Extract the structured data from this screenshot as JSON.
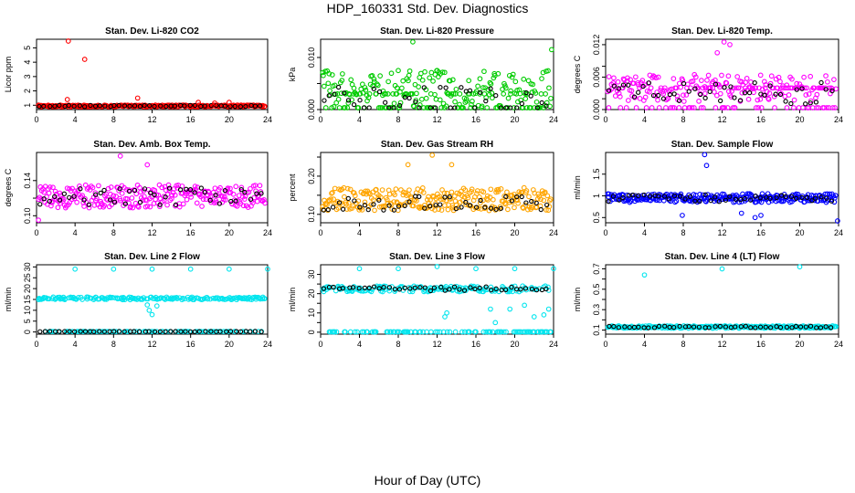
{
  "page": {
    "title": "HDP_160331  Std. Dev. Diagnostics",
    "xlabel": "Hour of Day (UTC)"
  },
  "chart_data": [
    {
      "type": "scatter",
      "title": "Stan. Dev. Li-820 CO2",
      "ylabel": "Licor ppm",
      "color": "#ff0000",
      "x_ticks": [
        0,
        4,
        8,
        12,
        16,
        20,
        24
      ],
      "xlim": [
        0,
        24
      ],
      "y_ticks": [
        1,
        2,
        3,
        4,
        5
      ],
      "ylim": [
        0.7,
        5.6
      ],
      "base": 0.95,
      "noise": 0.06,
      "black_base": 0.95,
      "black_noise": 0.05,
      "outliers": [
        [
          3.3,
          5.5
        ],
        [
          5.0,
          4.2
        ],
        [
          3.2,
          1.4
        ],
        [
          10.5,
          1.5
        ],
        [
          16.8,
          1.2
        ],
        [
          18.5,
          1.15
        ],
        [
          20.0,
          1.2
        ]
      ]
    },
    {
      "type": "scatter",
      "title": "Stan. Dev. Li-820 Pressure",
      "ylabel": "kPa",
      "color": "#00cc00",
      "x_ticks": [
        0,
        4,
        8,
        12,
        16,
        20,
        24
      ],
      "xlim": [
        0,
        24
      ],
      "y_ticks": [
        0.0,
        0.005,
        0.01
      ],
      "y_tick_labels": [
        "0.000",
        "",
        "0.010"
      ],
      "ylim": [
        0.0,
        0.0135
      ],
      "base": 0.004,
      "noise": 0.0035,
      "levels": [
        0.0,
        0.003
      ],
      "black_base": 0.002,
      "black_noise": 0.0025,
      "outliers": [
        [
          9.5,
          0.013
        ],
        [
          23.8,
          0.0115
        ],
        [
          8.0,
          0.0075
        ],
        [
          12.0,
          0.0075
        ]
      ]
    },
    {
      "type": "scatter",
      "title": "Stan. Dev. Li-820 Temp.",
      "ylabel": "degrees C",
      "color": "#ff00ff",
      "x_ticks": [
        0,
        4,
        8,
        12,
        16,
        20,
        24
      ],
      "xlim": [
        0,
        24
      ],
      "y_ticks": [
        0.0,
        0.002,
        0.006,
        0.008,
        0.012
      ],
      "y_tick_labels": [
        "0.000",
        "",
        "0.006",
        "",
        "0.012"
      ],
      "ylim": [
        0.0,
        0.013
      ],
      "base": 0.004,
      "noise": 0.0025,
      "levels": [
        0.0,
        0.004
      ],
      "black_base": 0.003,
      "black_noise": 0.002,
      "outliers": [
        [
          12.2,
          0.0125
        ],
        [
          12.8,
          0.012
        ],
        [
          11.5,
          0.0105
        ]
      ]
    },
    {
      "type": "scatter",
      "title": "Stan. Dev. Amb. Box Temp.",
      "ylabel": "degrees C",
      "color": "#ff00ff",
      "x_ticks": [
        0,
        4,
        8,
        12,
        16,
        20,
        24
      ],
      "xlim": [
        0,
        24
      ],
      "y_ticks": [
        0.1,
        0.12,
        0.14
      ],
      "y_tick_labels": [
        "0.10",
        "",
        "0.14"
      ],
      "ylim": [
        0.092,
        0.172
      ],
      "base": 0.122,
      "noise": 0.013,
      "black_base": 0.122,
      "black_noise": 0.01,
      "outliers": [
        [
          8.7,
          0.168
        ],
        [
          11.5,
          0.158
        ],
        [
          0.2,
          0.095
        ]
      ]
    },
    {
      "type": "scatter",
      "title": "Stan. Dev. Gas Stream RH",
      "ylabel": "percent",
      "color": "#ffa500",
      "x_ticks": [
        0,
        4,
        8,
        12,
        16,
        20,
        24
      ],
      "xlim": [
        0,
        24
      ],
      "y_ticks": [
        0.1,
        0.15,
        0.2,
        0.25
      ],
      "y_tick_labels": [
        "0.10",
        "",
        "0.20",
        ""
      ],
      "ylim": [
        0.078,
        0.262
      ],
      "base": 0.14,
      "noise": 0.03,
      "black_base": 0.13,
      "black_noise": 0.02,
      "outliers": [
        [
          11.5,
          0.255
        ],
        [
          13.5,
          0.23
        ],
        [
          9.0,
          0.23
        ]
      ]
    },
    {
      "type": "scatter",
      "title": "Stan. Dev. Sample Flow",
      "ylabel": "ml/min",
      "color": "#0000ff",
      "x_ticks": [
        0,
        4,
        8,
        12,
        16,
        20,
        24
      ],
      "xlim": [
        0,
        24
      ],
      "y_ticks": [
        0.5,
        1.0,
        1.5
      ],
      "ylim": [
        0.38,
        2.0
      ],
      "base": 0.95,
      "noise": 0.1,
      "black_base": 0.95,
      "black_noise": 0.08,
      "outliers": [
        [
          10.2,
          1.95
        ],
        [
          10.4,
          1.7
        ],
        [
          7.9,
          0.55
        ],
        [
          15.4,
          0.5
        ],
        [
          23.9,
          0.4
        ],
        [
          14.0,
          0.6
        ],
        [
          16.0,
          0.55
        ]
      ]
    },
    {
      "type": "scatter",
      "title": "Stan. Dev. Line 2 Flow",
      "ylabel": "ml/min",
      "color": "#00e5ee",
      "x_ticks": [
        0,
        4,
        8,
        12,
        16,
        20,
        24
      ],
      "xlim": [
        0,
        24
      ],
      "y_ticks": [
        0,
        5,
        10,
        15,
        20,
        25,
        30
      ],
      "ylim": [
        -1,
        31
      ],
      "base": 15.5,
      "noise": 0.6,
      "levels": [
        0.2
      ],
      "black_base": 0.2,
      "black_noise": 0.1,
      "outliers": [
        [
          4.0,
          29.0
        ],
        [
          8.0,
          29.0
        ],
        [
          12.0,
          29.0
        ],
        [
          16.0,
          29.0
        ],
        [
          20.0,
          29.0
        ],
        [
          24.0,
          29.0
        ],
        [
          11.7,
          10.0
        ],
        [
          12.0,
          8.0
        ],
        [
          11.5,
          12.5
        ],
        [
          12.5,
          12.0
        ]
      ]
    },
    {
      "type": "scatter",
      "title": "Stan. Dev. Line 3 Flow",
      "ylabel": "ml/min",
      "color": "#00e5ee",
      "x_ticks": [
        0,
        4,
        8,
        12,
        16,
        20,
        24
      ],
      "xlim": [
        0,
        24
      ],
      "y_ticks": [
        0,
        5,
        10,
        15,
        20,
        25,
        30
      ],
      "y_tick_labels": [
        "0",
        "",
        "10",
        "",
        "20",
        "",
        "30"
      ],
      "ylim": [
        -1,
        35
      ],
      "base": 22.5,
      "noise": 1.5,
      "levels": [
        0.2
      ],
      "black_base": 22.5,
      "black_noise": 1.2,
      "outliers": [
        [
          4.0,
          33.0
        ],
        [
          8.0,
          33.0
        ],
        [
          12.0,
          35.0
        ],
        [
          16.0,
          33.0
        ],
        [
          20.0,
          33.0
        ],
        [
          24.0,
          33.0
        ],
        [
          12.8,
          8.0
        ],
        [
          13.0,
          10.0
        ],
        [
          17.5,
          12.0
        ],
        [
          18.0,
          5.0
        ],
        [
          19.5,
          12.0
        ],
        [
          21.0,
          14.0
        ],
        [
          22.0,
          8.0
        ],
        [
          23.0,
          9.0
        ],
        [
          23.5,
          12.0
        ]
      ]
    },
    {
      "type": "scatter",
      "title": "Stan. Dev. Line 4 (LT) Flow",
      "ylabel": "ml/min",
      "color": "#00e5ee",
      "x_ticks": [
        0,
        4,
        8,
        12,
        16,
        20,
        24
      ],
      "xlim": [
        0,
        24
      ],
      "y_ticks": [
        0.1,
        0.2,
        0.3,
        0.4,
        0.5,
        0.6,
        0.7
      ],
      "y_tick_labels": [
        "0.1",
        "",
        "0.3",
        "",
        "0.5",
        "",
        "0.7"
      ],
      "ylim": [
        0.06,
        0.74
      ],
      "base": 0.13,
      "noise": 0.012,
      "black_base": 0.13,
      "black_noise": 0.008,
      "outliers": [
        [
          4.0,
          0.64
        ],
        [
          12.0,
          0.7
        ],
        [
          20.0,
          0.72
        ]
      ]
    }
  ]
}
